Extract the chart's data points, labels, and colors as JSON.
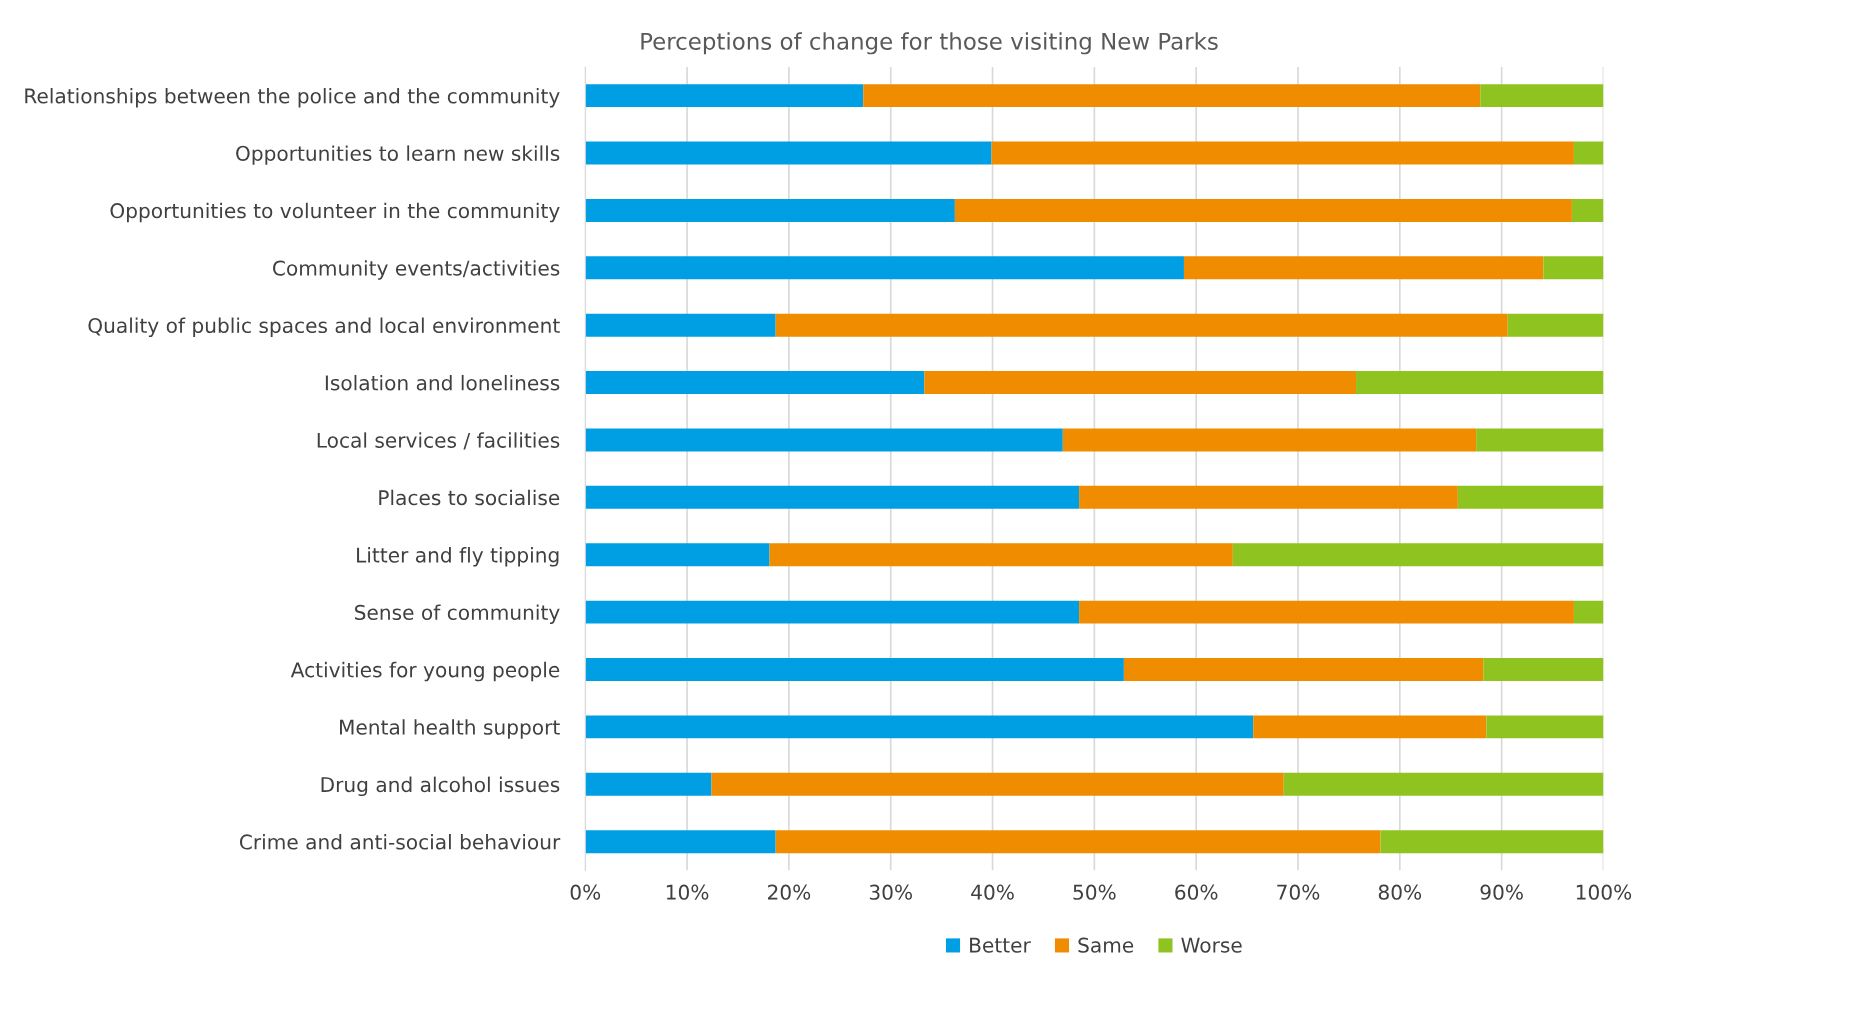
{
  "chart_data": {
    "type": "bar",
    "orientation": "horizontal",
    "stacked": true,
    "title": "Perceptions of change for those visiting New Parks",
    "categories": [
      "Relationships between the police and the community",
      "Opportunities to learn new skills",
      "Opportunities to volunteer in the community",
      "Community events/activities",
      "Quality of public spaces and local environment",
      "Isolation and loneliness",
      "Local services / facilities",
      "Places to socialise",
      "Litter and fly tipping",
      "Sense of community",
      "Activities for young people",
      "Mental health support",
      "Drug and alcohol issues",
      "Crime and anti-social behaviour"
    ],
    "series": [
      {
        "name": "Better",
        "color": "#009fe3",
        "values": [
          27.3,
          39.9,
          36.3,
          58.8,
          18.7,
          33.3,
          46.9,
          48.5,
          18.1,
          48.5,
          52.9,
          65.6,
          12.4,
          18.7
        ]
      },
      {
        "name": "Same",
        "color": "#f08c00",
        "values": [
          60.6,
          57.2,
          60.6,
          35.3,
          71.9,
          42.4,
          40.6,
          37.2,
          45.5,
          48.6,
          35.3,
          22.9,
          56.2,
          59.4
        ]
      },
      {
        "name": "Worse",
        "color": "#8fc31f",
        "values": [
          12.1,
          2.9,
          3.1,
          5.9,
          9.4,
          24.3,
          12.5,
          14.3,
          36.4,
          2.9,
          11.8,
          11.5,
          31.4,
          21.9
        ]
      }
    ],
    "xlim": [
      0,
      100
    ],
    "xticks": [
      {
        "value": 0,
        "label": "0%"
      },
      {
        "value": 10,
        "label": "10%"
      },
      {
        "value": 20,
        "label": "20%"
      },
      {
        "value": 30,
        "label": "30%"
      },
      {
        "value": 40,
        "label": "40%"
      },
      {
        "value": 50,
        "label": "50%"
      },
      {
        "value": 60,
        "label": "60%"
      },
      {
        "value": 70,
        "label": "70%"
      },
      {
        "value": 80,
        "label": "80%"
      },
      {
        "value": 90,
        "label": "90%"
      },
      {
        "value": 100,
        "label": "100%"
      }
    ],
    "grid": "x",
    "legend": "bottom"
  }
}
